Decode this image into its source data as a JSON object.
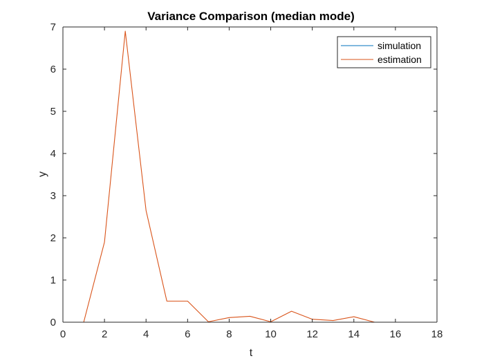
{
  "chart_data": {
    "type": "line",
    "title": "Variance Comparison (median mode)",
    "xlabel": "t",
    "ylabel": "y",
    "xlim": [
      0,
      18
    ],
    "ylim": [
      0,
      7
    ],
    "xticks": [
      0,
      2,
      4,
      6,
      8,
      10,
      12,
      14,
      16,
      18
    ],
    "yticks": [
      0,
      1,
      2,
      3,
      4,
      5,
      6,
      7
    ],
    "grid": false,
    "legend_position": "top-right",
    "x": [
      1,
      2,
      3,
      4,
      5,
      6,
      7,
      8,
      9,
      10,
      11,
      12,
      13,
      14,
      15,
      16,
      17,
      18
    ],
    "series": [
      {
        "name": "simulation",
        "color": "#0072BD",
        "values": [
          0,
          0,
          0,
          0,
          0,
          0,
          0,
          0,
          0,
          0,
          0,
          0,
          0,
          0,
          0,
          0,
          0,
          0
        ]
      },
      {
        "name": "estimation",
        "color": "#D95319",
        "values": [
          0,
          1.9,
          6.9,
          2.65,
          0.5,
          0.5,
          0.01,
          0.11,
          0.14,
          0.01,
          0.26,
          0.07,
          0.04,
          0.13,
          0.0,
          0.0,
          0.0,
          0.0
        ]
      }
    ]
  }
}
